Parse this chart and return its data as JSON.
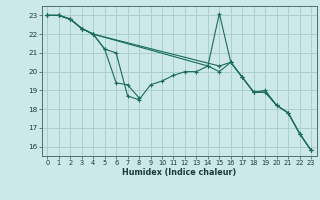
{
  "xlabel": "Humidex (Indice chaleur)",
  "ylabel": "",
  "bg_color": "#cce8e8",
  "grid_color": "#aacfcf",
  "line_color": "#1a6b5a",
  "xlim": [
    -0.5,
    23.5
  ],
  "ylim": [
    15.5,
    23.5
  ],
  "xticks": [
    0,
    1,
    2,
    3,
    4,
    5,
    6,
    7,
    8,
    9,
    10,
    11,
    12,
    13,
    14,
    15,
    16,
    17,
    18,
    19,
    20,
    21,
    22,
    23
  ],
  "yticks": [
    16,
    17,
    18,
    19,
    20,
    21,
    22,
    23
  ],
  "lines": [
    {
      "x": [
        0,
        1,
        2,
        3,
        4,
        5,
        6,
        7,
        8,
        9,
        10,
        11,
        12,
        13,
        14,
        15,
        16,
        17,
        18,
        19,
        20,
        21,
        22,
        23
      ],
      "y": [
        23.0,
        23.0,
        22.8,
        22.3,
        22.0,
        21.2,
        21.0,
        18.7,
        18.5,
        19.3,
        19.5,
        19.8,
        20.0,
        20.0,
        20.3,
        23.1,
        20.5,
        19.7,
        18.9,
        19.0,
        18.2,
        17.8,
        16.7,
        15.8
      ]
    },
    {
      "x": [
        0,
        1,
        2,
        3,
        4,
        5,
        6,
        7,
        8
      ],
      "y": [
        23.0,
        23.0,
        22.8,
        22.3,
        22.0,
        21.2,
        19.4,
        19.3,
        18.6
      ]
    },
    {
      "x": [
        0,
        1,
        2,
        3,
        4,
        15,
        16,
        17,
        18,
        19,
        20,
        21,
        22,
        23
      ],
      "y": [
        23.0,
        23.0,
        22.8,
        22.3,
        22.0,
        20.3,
        20.5,
        19.7,
        18.9,
        18.9,
        18.2,
        17.8,
        16.7,
        15.8
      ]
    },
    {
      "x": [
        0,
        1,
        2,
        3,
        4,
        14,
        15,
        16,
        17,
        18,
        19,
        20,
        21,
        22,
        23
      ],
      "y": [
        23.0,
        23.0,
        22.8,
        22.3,
        22.0,
        20.3,
        20.0,
        20.5,
        19.7,
        18.9,
        18.9,
        18.2,
        17.8,
        16.7,
        15.8
      ]
    }
  ]
}
